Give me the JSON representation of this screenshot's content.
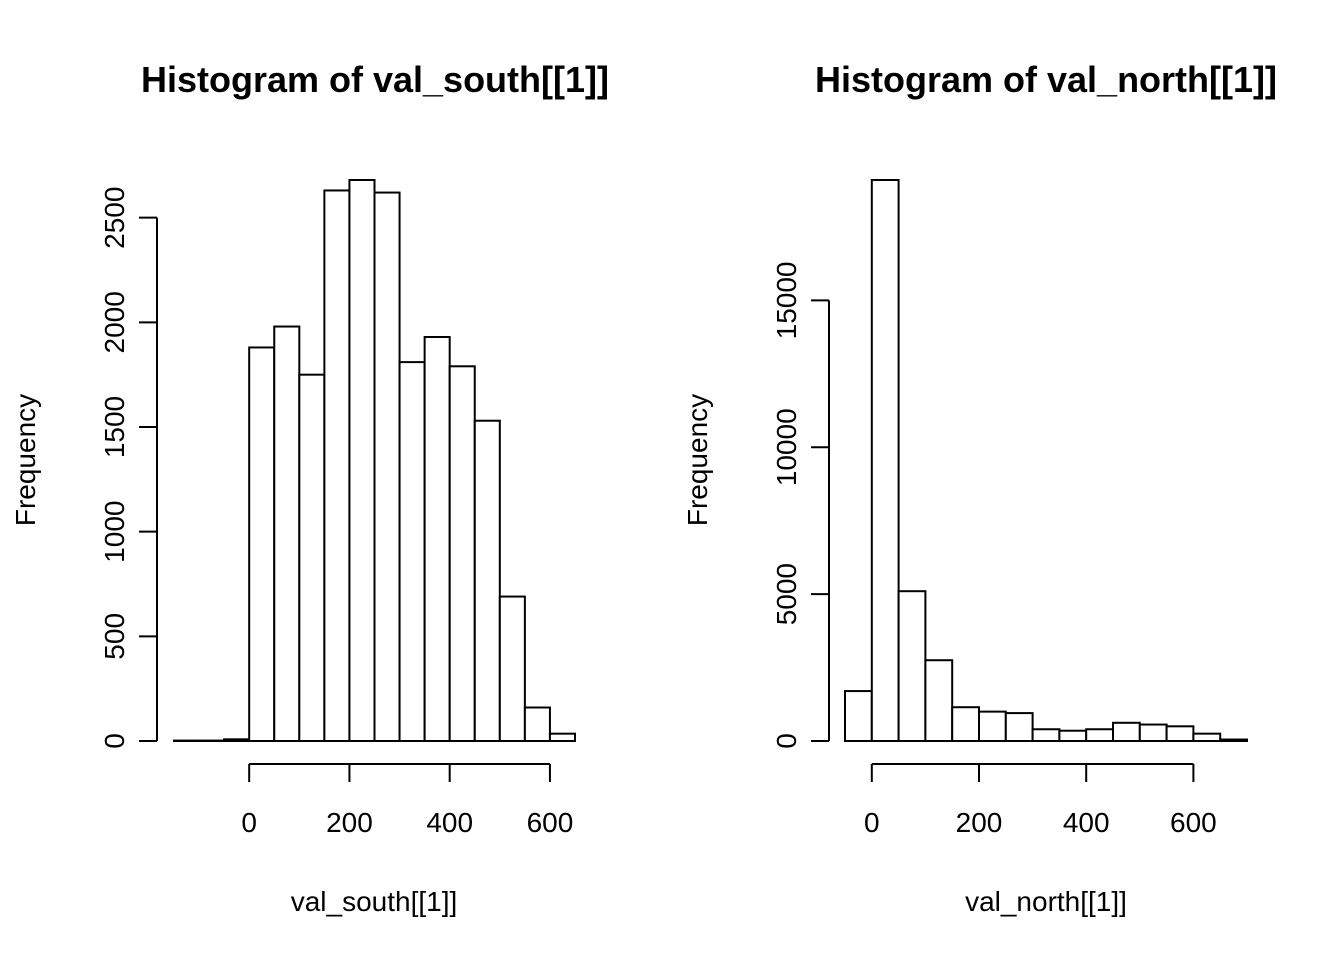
{
  "chart_data": [
    {
      "type": "bar",
      "title": "Histogram of val_south[[1]]",
      "xlabel": "val_south[[1]]",
      "ylabel": "Frequency",
      "bin_edges": [
        -150,
        -100,
        -50,
        0,
        50,
        100,
        150,
        200,
        250,
        300,
        350,
        400,
        450,
        500,
        550,
        600,
        650
      ],
      "values": [
        2,
        2,
        8,
        1880,
        1980,
        1750,
        2630,
        2680,
        2620,
        1810,
        1930,
        1790,
        1530,
        690,
        160,
        35
      ],
      "xlim": [
        -150,
        650
      ],
      "ylim": [
        0,
        2680
      ],
      "x_ticks": [
        0,
        200,
        400,
        600
      ],
      "y_ticks": [
        0,
        500,
        1000,
        1500,
        2000,
        2500
      ]
    },
    {
      "type": "bar",
      "title": "Histogram of val_north[[1]]",
      "xlabel": "val_north[[1]]",
      "ylabel": "Frequency",
      "bin_edges": [
        -50,
        0,
        50,
        100,
        150,
        200,
        250,
        300,
        350,
        400,
        450,
        500,
        550,
        600,
        650,
        700
      ],
      "values": [
        1700,
        19100,
        5100,
        2750,
        1150,
        1000,
        950,
        400,
        350,
        400,
        620,
        560,
        500,
        250,
        50
      ],
      "xlim": [
        -50,
        700
      ],
      "ylim": [
        0,
        19100
      ],
      "x_ticks": [
        0,
        200,
        400,
        600
      ],
      "y_ticks": [
        0,
        5000,
        10000,
        15000
      ]
    }
  ]
}
